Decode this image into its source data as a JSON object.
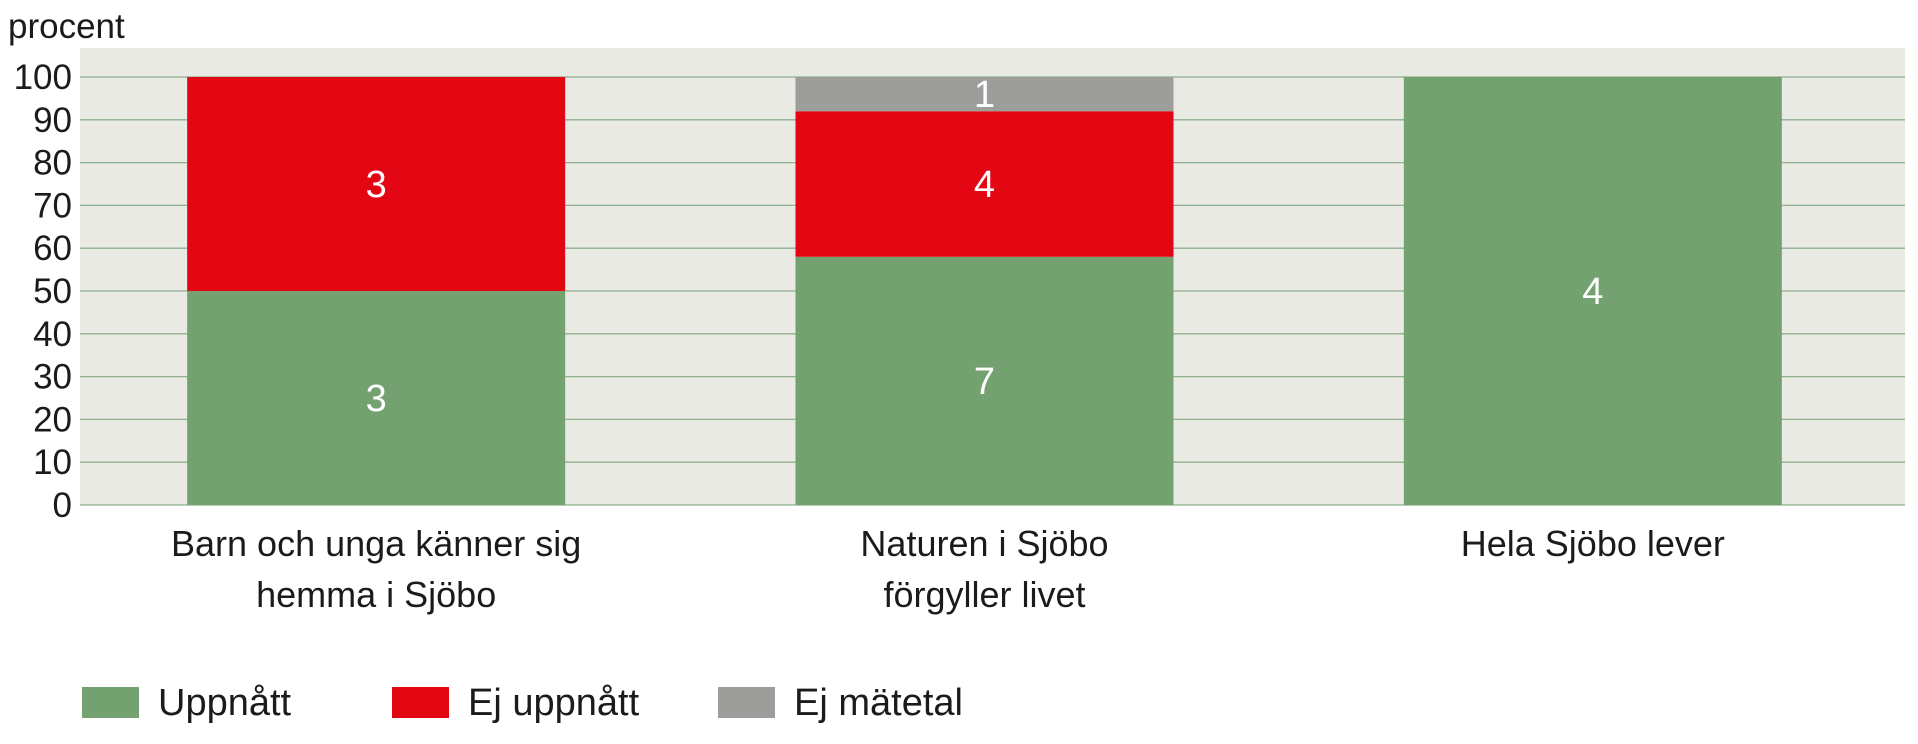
{
  "chart_data": {
    "type": "bar",
    "stacked": true,
    "title": "",
    "xlabel": "",
    "ylabel": "procent",
    "ylim": [
      0,
      100
    ],
    "yticks": [
      0,
      10,
      20,
      30,
      40,
      50,
      60,
      70,
      80,
      90,
      100
    ],
    "grid": true,
    "legend_position": "bottom-left",
    "categories": [
      [
        "Barn och unga känner sig",
        "hemma i Sjöbo"
      ],
      [
        "Naturen i Sjöbo",
        "förgyller livet"
      ],
      [
        "Hela Sjöbo lever"
      ]
    ],
    "series": [
      {
        "name": "Uppnått",
        "color": "#74a170",
        "values": [
          50,
          58,
          100
        ],
        "labels": [
          "3",
          "7",
          "4"
        ]
      },
      {
        "name": "Ej uppnått",
        "color": "#e30613",
        "values": [
          50,
          34,
          0
        ],
        "labels": [
          "3",
          "4",
          ""
        ]
      },
      {
        "name": "Ej mätetal",
        "color": "#9d9d9c",
        "values": [
          0,
          8,
          0
        ],
        "labels": [
          "",
          "1",
          ""
        ]
      }
    ],
    "colors": {
      "plot_background": "#e8eae3",
      "gridline": "#8fb08c",
      "label_text": "#ffffff",
      "axis_text": "#1b1b1b"
    }
  }
}
